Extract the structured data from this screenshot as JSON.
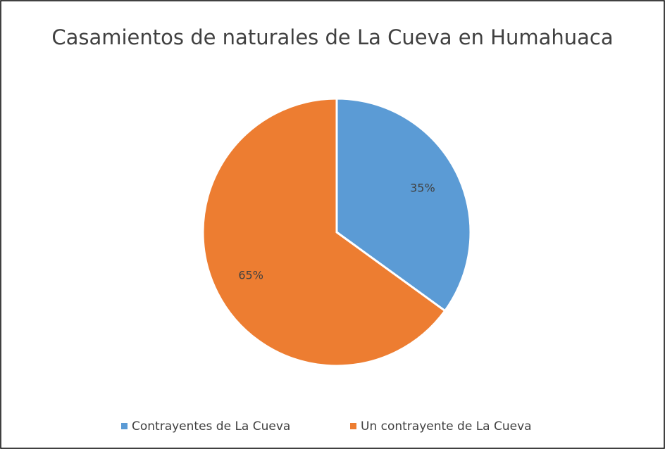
{
  "chart_data": {
    "type": "pie",
    "title": "Casamientos de naturales de La Cueva en Humahuaca",
    "categories": [
      "Contrayentes de La Cueva",
      "Un contrayente de La Cueva"
    ],
    "values": [
      35,
      65
    ],
    "value_labels": [
      "35%",
      "65%"
    ],
    "colors": [
      "#5b9bd5",
      "#ed7d31"
    ],
    "legend": "bottom"
  }
}
